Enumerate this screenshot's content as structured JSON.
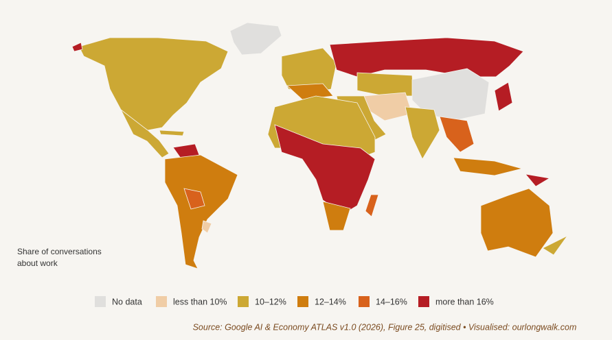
{
  "legend_title": [
    "Share of conversations",
    "about work"
  ],
  "legend": [
    {
      "label": "No data",
      "color": "#e0dfdd"
    },
    {
      "label": "less than 10%",
      "color": "#f0cda6"
    },
    {
      "label": "10–12%",
      "color": "#cca834"
    },
    {
      "label": "12–14%",
      "color": "#cf7d0f"
    },
    {
      "label": "14–16%",
      "color": "#d8621c"
    },
    {
      "label": "more than 16%",
      "color": "#b51d24"
    }
  ],
  "source": "Source: Google AI & Economy ATLAS v1.0 (2026), Figure 25, digitised • Visualised: ourlongwalk.com"
}
